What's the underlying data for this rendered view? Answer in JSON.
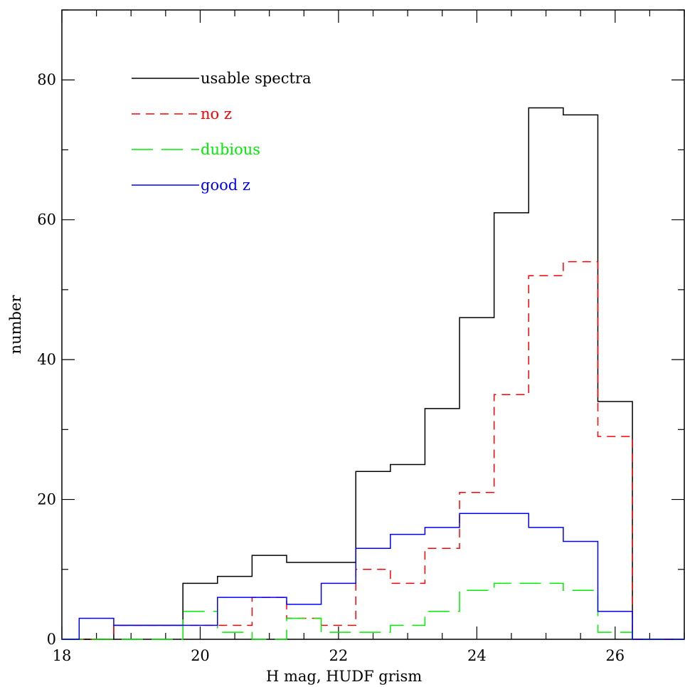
{
  "chart_data": {
    "type": "histogram-step",
    "title": "",
    "xlabel": "H mag, HUDF grism",
    "ylabel": "number",
    "xlim": [
      18,
      27
    ],
    "ylim": [
      0,
      90
    ],
    "grid": false,
    "legend_position": "top-left",
    "x_ticks": [
      18,
      20,
      22,
      24,
      26
    ],
    "y_ticks": [
      0,
      20,
      40,
      60,
      80
    ],
    "x_tick_labels": [
      "18",
      "20",
      "22",
      "24",
      "26"
    ],
    "y_tick_labels": [
      "0",
      "20",
      "40",
      "60",
      "80"
    ],
    "bin_edges": [
      18.25,
      18.75,
      19.25,
      19.75,
      20.25,
      20.75,
      21.25,
      21.75,
      22.25,
      22.75,
      23.25,
      23.75,
      24.25,
      24.75,
      25.25,
      25.75,
      26.25
    ],
    "series": [
      {
        "name": "usable spectra",
        "color": "#000000",
        "dash": "solid",
        "values": [
          0,
          2,
          2,
          8,
          9,
          12,
          11,
          11,
          24,
          25,
          33,
          46,
          61,
          76,
          75,
          34
        ]
      },
      {
        "name": "no z",
        "color": "#ff0000",
        "dash": "short-dash",
        "values": [
          0,
          2,
          2,
          2,
          2,
          6,
          3,
          2,
          10,
          8,
          13,
          21,
          35,
          52,
          54,
          29
        ]
      },
      {
        "name": "dubious",
        "color": "#00ee00",
        "dash": "long-dash",
        "values": [
          0,
          0,
          0,
          4,
          1,
          0,
          3,
          1,
          1,
          2,
          4,
          7,
          8,
          8,
          7,
          1
        ]
      },
      {
        "name": "good z",
        "color": "#0000ff",
        "dash": "solid",
        "values": [
          3,
          2,
          2,
          2,
          6,
          6,
          5,
          8,
          13,
          15,
          16,
          18,
          18,
          16,
          14,
          4
        ]
      }
    ]
  }
}
